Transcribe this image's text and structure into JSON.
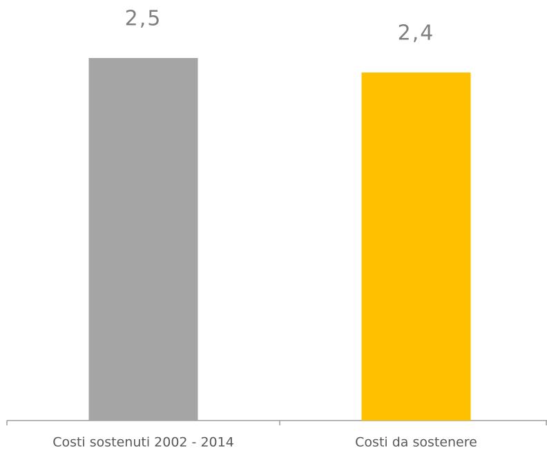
{
  "chart_data": {
    "type": "bar",
    "categories": [
      "Costi sostenuti 2002 - 2014",
      "Costi da sostenere"
    ],
    "values": [
      2.5,
      2.4
    ],
    "value_labels": [
      "2,5",
      "2,4"
    ],
    "colors": [
      "#a5a5a5",
      "#ffc000"
    ]
  }
}
